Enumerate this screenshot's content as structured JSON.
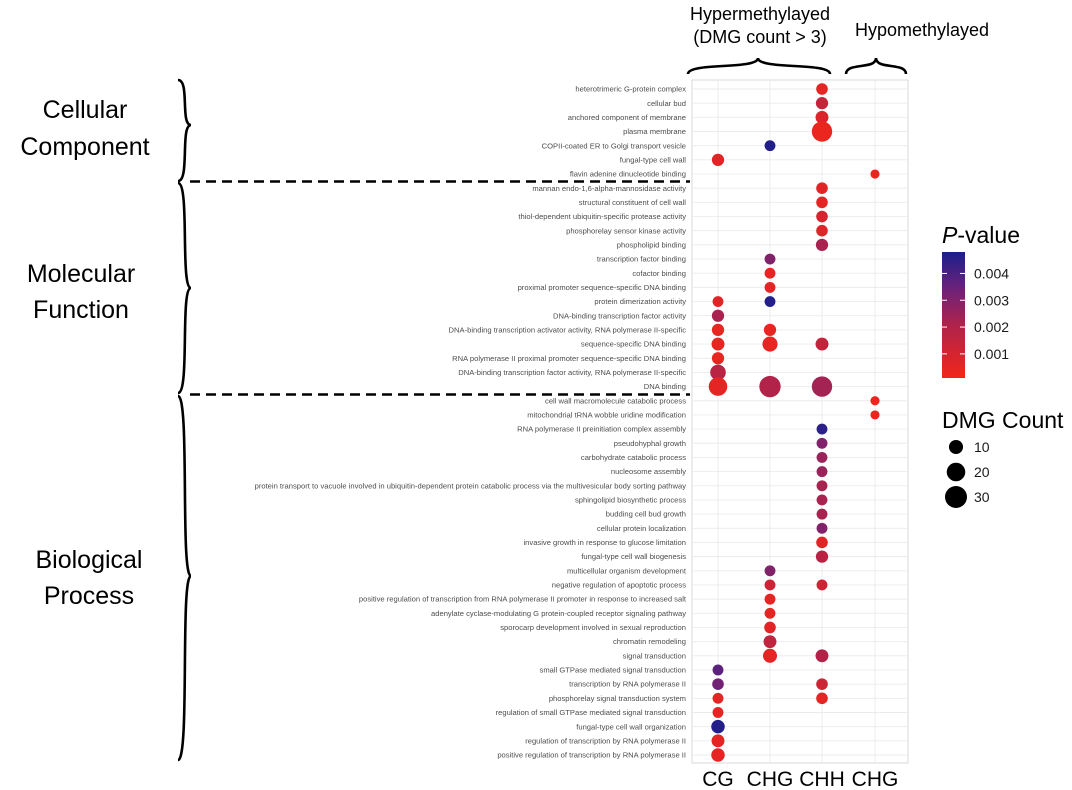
{
  "chart_data": {
    "type": "scatter",
    "subtype": "dot-plot",
    "groups": [
      {
        "label_lines": [
          "Hypermethylayed",
          "(DMG count > 3)"
        ],
        "columns": [
          "CG",
          "CHG",
          "CHH"
        ]
      },
      {
        "label_lines": [
          "Hypomethylayed"
        ],
        "columns": [
          "CHG"
        ]
      }
    ],
    "x_categories": [
      "CG",
      "CHG",
      "CHH",
      "CHG"
    ],
    "categories_sections": [
      {
        "label_lines": [
          "Cellular",
          "Component"
        ]
      },
      {
        "label_lines": [
          "Molecular",
          "Function"
        ]
      },
      {
        "label_lines": [
          "Biological",
          "Process"
        ]
      }
    ],
    "terms": [
      "heterotrimeric G-protein complex",
      "cellular bud",
      "anchored component of membrane",
      "plasma membrane",
      "COPII-coated ER to Golgi transport vesicle",
      "fungal-type cell wall",
      "flavin adenine dinucleotide binding",
      "mannan endo-1,6-alpha-mannosidase activity",
      "structural constituent of cell wall",
      "thiol-dependent ubiquitin-specific protease activity",
      "phosphorelay sensor kinase activity",
      "phospholipid binding",
      "transcription factor binding",
      "cofactor binding",
      "proximal promoter sequence-specific DNA binding",
      "protein dimerization activity",
      "DNA-binding transcription factor activity",
      "DNA-binding transcription activator activity, RNA polymerase II-specific",
      "sequence-specific DNA binding",
      "RNA polymerase II proximal promoter sequence-specific DNA binding",
      "DNA-binding transcription factor activity, RNA polymerase II-specific",
      "DNA binding",
      "cell wall macromolecule catabolic process",
      "mitochondrial tRNA wobble uridine modification",
      "RNA polymerase II preinitiation complex assembly",
      "pseudohyphal growth",
      "carbohydrate catabolic process",
      "nucleosome assembly",
      "protein transport to vacuole involved in ubiquitin-dependent protein catabolic process via the multivesicular body sorting pathway",
      "sphingolipid biosynthetic process",
      "budding cell bud growth",
      "cellular protein localization",
      "invasive growth in response to glucose limitation",
      "fungal-type cell wall biogenesis",
      "multicellular organism development",
      "negative regulation of apoptotic process",
      "positive regulation of transcription from RNA polymerase II promoter in response to increased salt",
      "adenylate cyclase-modulating G protein-coupled receptor signaling pathway",
      "sporocarp development involved in sexual reproduction",
      "chromatin remodeling",
      "signal transduction",
      "small GTPase mediated signal transduction",
      "transcription by RNA polymerase II",
      "phosphorelay signal transduction system",
      "regulation of small GTPase mediated signal transduction",
      "fungal-type cell wall organization",
      "regulation of transcription by RNA polymerase II",
      "positive regulation of transcription by RNA polymerase II"
    ],
    "points": [
      {
        "term": 0,
        "col": 2,
        "count": 6,
        "p": 0.0005
      },
      {
        "term": 1,
        "col": 2,
        "count": 7,
        "p": 0.0015
      },
      {
        "term": 2,
        "col": 2,
        "count": 8,
        "p": 0.0008
      },
      {
        "term": 3,
        "col": 2,
        "count": 25,
        "p": 0.0003
      },
      {
        "term": 4,
        "col": 1,
        "count": 5,
        "p": 0.0047
      },
      {
        "term": 5,
        "col": 0,
        "count": 7,
        "p": 0.0006
      },
      {
        "term": 6,
        "col": 3,
        "count": 3,
        "p": 0.0003
      },
      {
        "term": 7,
        "col": 2,
        "count": 6,
        "p": 0.0006
      },
      {
        "term": 8,
        "col": 2,
        "count": 6,
        "p": 0.0005
      },
      {
        "term": 9,
        "col": 2,
        "count": 6,
        "p": 0.001
      },
      {
        "term": 10,
        "col": 2,
        "count": 6,
        "p": 0.0007
      },
      {
        "term": 11,
        "col": 2,
        "count": 7,
        "p": 0.0022
      },
      {
        "term": 12,
        "col": 1,
        "count": 5,
        "p": 0.003
      },
      {
        "term": 13,
        "col": 1,
        "count": 5,
        "p": 0.0005
      },
      {
        "term": 14,
        "col": 1,
        "count": 5,
        "p": 0.0005
      },
      {
        "term": 15,
        "col": 0,
        "count": 5,
        "p": 0.0006
      },
      {
        "term": 15,
        "col": 1,
        "count": 5,
        "p": 0.0047
      },
      {
        "term": 16,
        "col": 0,
        "count": 7,
        "p": 0.0022
      },
      {
        "term": 17,
        "col": 0,
        "count": 7,
        "p": 0.0004
      },
      {
        "term": 17,
        "col": 1,
        "count": 7,
        "p": 0.0004
      },
      {
        "term": 18,
        "col": 0,
        "count": 8,
        "p": 0.0004
      },
      {
        "term": 18,
        "col": 1,
        "count": 12,
        "p": 0.0004
      },
      {
        "term": 18,
        "col": 2,
        "count": 8,
        "p": 0.0015
      },
      {
        "term": 19,
        "col": 0,
        "count": 7,
        "p": 0.0004
      },
      {
        "term": 20,
        "col": 0,
        "count": 13,
        "p": 0.0018
      },
      {
        "term": 21,
        "col": 0,
        "count": 20,
        "p": 0.0005
      },
      {
        "term": 21,
        "col": 1,
        "count": 28,
        "p": 0.002
      },
      {
        "term": 21,
        "col": 2,
        "count": 25,
        "p": 0.0023
      },
      {
        "term": 22,
        "col": 3,
        "count": 3,
        "p": 0.0003
      },
      {
        "term": 23,
        "col": 3,
        "count": 3,
        "p": 0.0003
      },
      {
        "term": 24,
        "col": 2,
        "count": 5,
        "p": 0.0045
      },
      {
        "term": 25,
        "col": 2,
        "count": 5,
        "p": 0.003
      },
      {
        "term": 26,
        "col": 2,
        "count": 5,
        "p": 0.0025
      },
      {
        "term": 27,
        "col": 2,
        "count": 5,
        "p": 0.0025
      },
      {
        "term": 28,
        "col": 2,
        "count": 5,
        "p": 0.0022
      },
      {
        "term": 29,
        "col": 2,
        "count": 5,
        "p": 0.0022
      },
      {
        "term": 30,
        "col": 2,
        "count": 5,
        "p": 0.0022
      },
      {
        "term": 31,
        "col": 2,
        "count": 5,
        "p": 0.003
      },
      {
        "term": 32,
        "col": 2,
        "count": 6,
        "p": 0.0006
      },
      {
        "term": 33,
        "col": 2,
        "count": 7,
        "p": 0.0018
      },
      {
        "term": 34,
        "col": 1,
        "count": 5,
        "p": 0.003
      },
      {
        "term": 35,
        "col": 1,
        "count": 5,
        "p": 0.0012
      },
      {
        "term": 35,
        "col": 2,
        "count": 5,
        "p": 0.0012
      },
      {
        "term": 36,
        "col": 1,
        "count": 5,
        "p": 0.0005
      },
      {
        "term": 37,
        "col": 1,
        "count": 5,
        "p": 0.0005
      },
      {
        "term": 38,
        "col": 1,
        "count": 6,
        "p": 0.0006
      },
      {
        "term": 39,
        "col": 1,
        "count": 8,
        "p": 0.0016
      },
      {
        "term": 40,
        "col": 1,
        "count": 10,
        "p": 0.0005
      },
      {
        "term": 40,
        "col": 2,
        "count": 8,
        "p": 0.002
      },
      {
        "term": 41,
        "col": 0,
        "count": 5,
        "p": 0.0037
      },
      {
        "term": 42,
        "col": 0,
        "count": 6,
        "p": 0.0033
      },
      {
        "term": 42,
        "col": 2,
        "count": 6,
        "p": 0.0012
      },
      {
        "term": 43,
        "col": 0,
        "count": 5,
        "p": 0.0005
      },
      {
        "term": 43,
        "col": 2,
        "count": 6,
        "p": 0.0005
      },
      {
        "term": 44,
        "col": 0,
        "count": 5,
        "p": 0.0005
      },
      {
        "term": 45,
        "col": 0,
        "count": 9,
        "p": 0.0047
      },
      {
        "term": 46,
        "col": 0,
        "count": 8,
        "p": 0.0005
      },
      {
        "term": 47,
        "col": 0,
        "count": 9,
        "p": 0.0005
      }
    ],
    "size_legend": {
      "title": "DMG Count",
      "values": [
        10,
        20,
        30
      ]
    },
    "color_legend": {
      "title_italic": "P",
      "title_rest": "-value",
      "range": [
        0.0001,
        0.0048
      ],
      "ticks": [
        0.001,
        0.002,
        0.003,
        0.004
      ],
      "tick_labels": [
        "0.001",
        "0.002",
        "0.003",
        "0.004"
      ],
      "low_color": "#e8281c",
      "high_color": "#1c1f8c"
    },
    "grid": true
  }
}
